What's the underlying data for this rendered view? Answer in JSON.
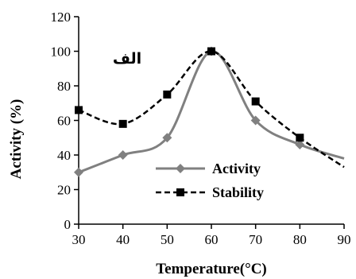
{
  "chart_data": {
    "type": "line",
    "xlabel": "Temperature(°C)",
    "ylabel": "Activity (%)",
    "annotation": "الف",
    "xlim": [
      30,
      90
    ],
    "ylim": [
      0,
      120
    ],
    "x_ticks": [
      "30",
      "40",
      "50",
      "60",
      "70",
      "80",
      "90"
    ],
    "y_ticks": [
      "0",
      "20",
      "40",
      "60",
      "80",
      "100",
      "120"
    ],
    "grid": false,
    "legend_position": "bottom-right",
    "series": [
      {
        "name": "Activity",
        "marker": "diamond",
        "color": "#808080",
        "line_style": "solid",
        "x": [
          30,
          40,
          50,
          60,
          70,
          80,
          90
        ],
        "y": [
          30,
          40,
          50,
          100,
          60,
          46,
          38
        ]
      },
      {
        "name": "Stability",
        "marker": "square",
        "color": "#000000",
        "line_style": "dashed",
        "x": [
          30,
          40,
          50,
          60,
          70,
          80,
          90
        ],
        "y": [
          66,
          58,
          75,
          100,
          71,
          50,
          33
        ]
      }
    ]
  }
}
